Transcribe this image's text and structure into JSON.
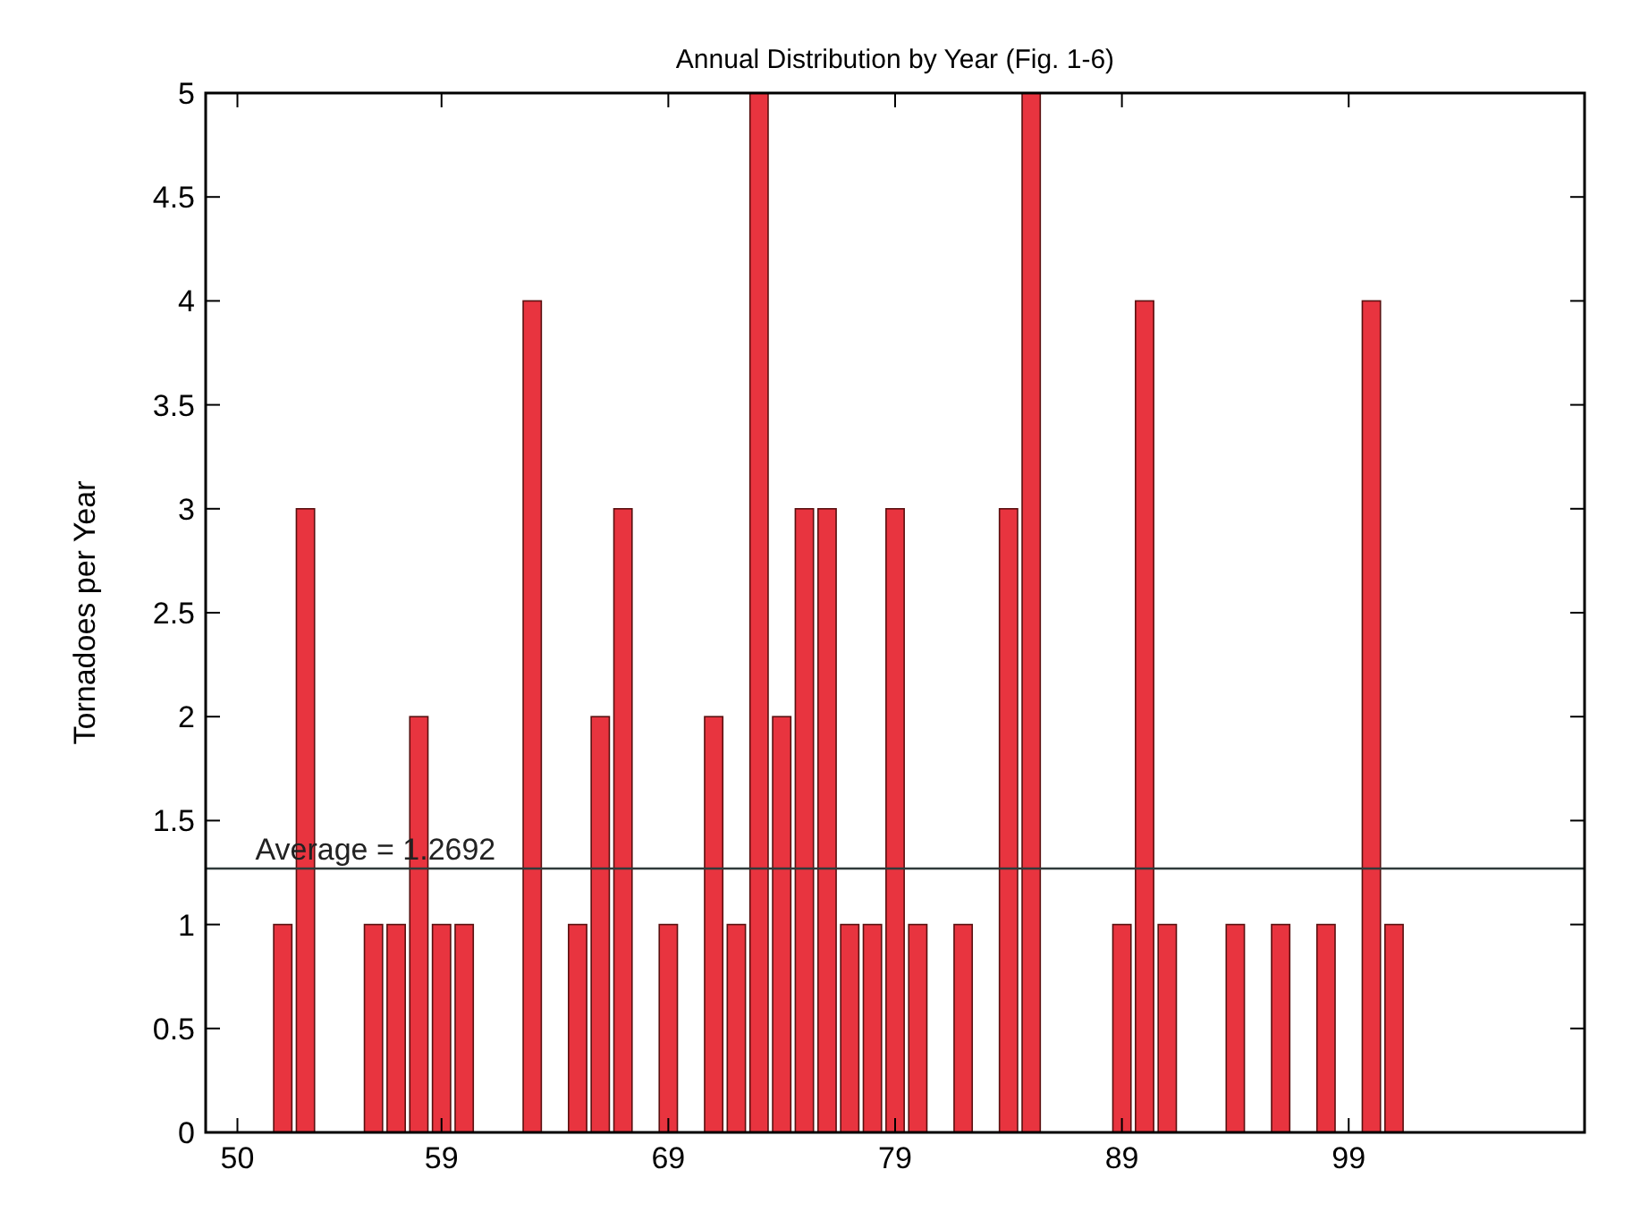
{
  "chart_data": {
    "type": "bar",
    "title": "Annual Distribution by Year (Fig. 1-6)",
    "ylabel": "Tornadoes per Year",
    "x": [
      52,
      53,
      56,
      57,
      58,
      59,
      60,
      63,
      65,
      66,
      67,
      69,
      71,
      72,
      73,
      74,
      75,
      76,
      77,
      78,
      79,
      80,
      82,
      84,
      85,
      89,
      90,
      91,
      94,
      96,
      98,
      100,
      101
    ],
    "values": [
      1,
      3,
      1,
      1,
      2,
      1,
      1,
      4,
      1,
      2,
      3,
      1,
      2,
      1,
      5,
      2,
      3,
      3,
      1,
      1,
      3,
      1,
      1,
      3,
      5,
      1,
      4,
      1,
      1,
      1,
      1,
      4,
      1
    ],
    "color": "#e8343f",
    "xlim": [
      48.6,
      109.4
    ],
    "xticks": [
      50,
      59,
      69,
      79,
      89,
      99
    ],
    "ylim": [
      0,
      5
    ],
    "yticks": [
      0,
      0.5,
      1,
      1.5,
      2,
      2.5,
      3,
      3.5,
      4,
      4.5,
      5
    ],
    "ref_lines": [
      {
        "axis": "y",
        "value": 1.2692,
        "label": "Average = 1.2692",
        "color": "#2f3a3a"
      }
    ],
    "grid": false
  }
}
